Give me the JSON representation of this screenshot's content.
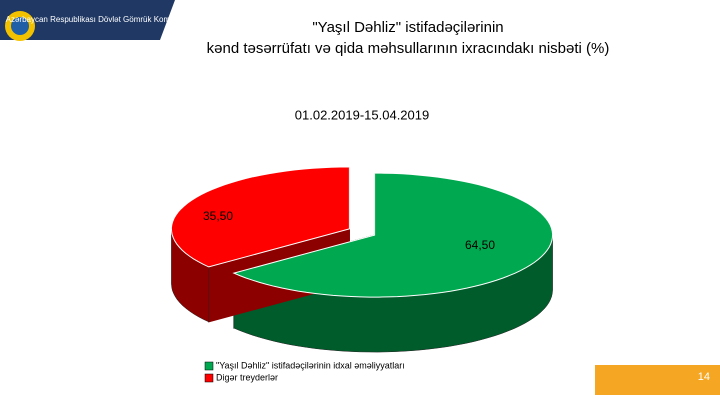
{
  "header": {
    "org": "Azərbaycan Respublikası Dövlət Gömrük Komitəsi"
  },
  "page_number": "14",
  "chart_data": {
    "type": "pie",
    "title": [
      "\"Yaşıl Dəhliz\" istifadəçilərinin",
      "kənd təsərrüfatı və qida məhsullarının ixracındakı nisbəti (%)"
    ],
    "subtitle": "01.02.2019-15.04.2019",
    "categories": [
      "\"Yaşıl Dəhliz\" istifadəçilərinin idxal əməliyyatları",
      "Digər treyderlər"
    ],
    "values": [
      64.5,
      35.5
    ],
    "value_labels": [
      "64,50",
      "35,50"
    ],
    "colors": [
      "#00a84f",
      "#ff0000"
    ],
    "legend": "bottom"
  }
}
